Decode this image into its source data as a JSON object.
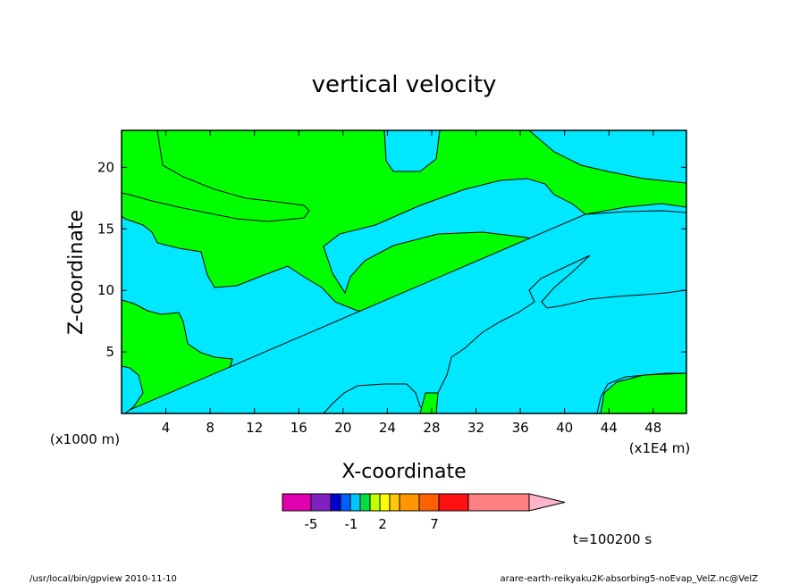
{
  "chart_data": {
    "type": "heatmap",
    "subtype": "filled-contour",
    "title": "vertical velocity",
    "xlabel": "X-coordinate",
    "ylabel": "Z-coordinate",
    "x_unit_label": "(x1E4 m)",
    "y_unit_label": "(x1000 m)",
    "xlim": [
      0,
      51
    ],
    "ylim": [
      0,
      23
    ],
    "xticks": [
      4,
      8,
      12,
      16,
      20,
      24,
      28,
      32,
      36,
      40,
      44,
      48
    ],
    "yticks": [
      5,
      10,
      15,
      20
    ],
    "colors": {
      "positive": "#00ff00",
      "negative": "#00e8ff",
      "contour": "#000000"
    },
    "colorbar": {
      "tick_labels": [
        "-5",
        "-1",
        "2",
        "7"
      ],
      "colors": [
        "#e000b0",
        "#8020c0",
        "#0000d0",
        "#0060ff",
        "#00c8ff",
        "#00e040",
        "#c0ff00",
        "#ffff00",
        "#ffc800",
        "#ff9600",
        "#ff6000",
        "#ff1010",
        "#ff8080"
      ],
      "arrow_color": "#ffb4c8",
      "position": "bottom"
    },
    "time_label": "t=100200 s"
  },
  "footer": {
    "left": "/usr/local/bin/gpview  2010-11-10",
    "right": "arare-earth-reikyaku2K-absorbing5-noEvap_VelZ.nc@VelZ"
  }
}
